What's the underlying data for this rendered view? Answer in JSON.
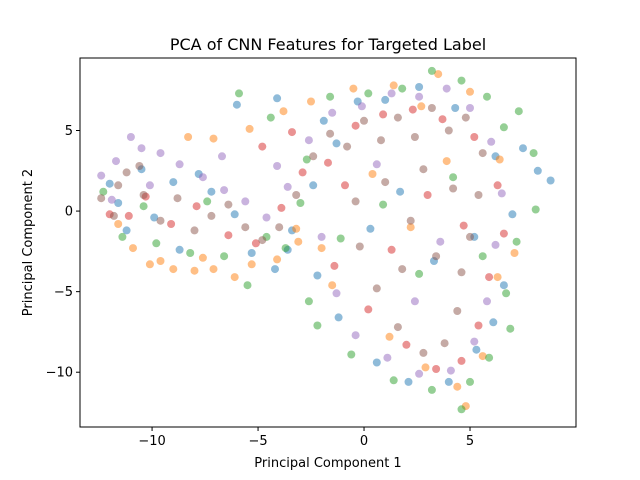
{
  "chart_data": {
    "type": "scatter",
    "title": "PCA of CNN Features for Targeted Label",
    "xlabel": "Principal Component 1",
    "ylabel": "Principal Component 2",
    "xlim": [
      -13.4,
      10.0
    ],
    "ylim": [
      -13.4,
      9.5
    ],
    "x_ticks": [
      -10,
      -5,
      0,
      5
    ],
    "y_ticks": [
      -10,
      -5,
      0,
      5
    ],
    "x_tick_labels": [
      "−10",
      "−5",
      "0",
      "5"
    ],
    "y_tick_labels": [
      "−10",
      "−5",
      "0",
      "5"
    ],
    "grid": false,
    "legend": "none",
    "marker_alpha": 0.5,
    "series_colors": [
      "#1f77b4",
      "#ff7f0e",
      "#2ca02c",
      "#d62728",
      "#9467bd",
      "#8c564b"
    ],
    "series": [
      {
        "color": "#1f77b4",
        "points": [
          [
            -12.0,
            1.7
          ],
          [
            -11.2,
            -1.2
          ],
          [
            -10.5,
            2.6
          ],
          [
            -9.0,
            1.8
          ],
          [
            -7.8,
            2.3
          ],
          [
            -6.1,
            -0.2
          ],
          [
            -5.3,
            -2.6
          ],
          [
            -4.2,
            -3.6
          ],
          [
            -3.4,
            -1.2
          ],
          [
            -2.4,
            1.6
          ],
          [
            -1.3,
            4.2
          ],
          [
            -0.3,
            6.8
          ],
          [
            1.0,
            6.9
          ],
          [
            2.6,
            7.7
          ],
          [
            4.3,
            6.4
          ],
          [
            6.2,
            3.4
          ],
          [
            7.5,
            3.9
          ],
          [
            8.2,
            2.5
          ],
          [
            8.8,
            1.9
          ],
          [
            7.0,
            -0.2
          ],
          [
            6.6,
            -4.6
          ],
          [
            6.1,
            -6.9
          ],
          [
            5.3,
            -8.6
          ],
          [
            4.0,
            -10.6
          ],
          [
            2.1,
            -10.6
          ],
          [
            0.6,
            -9.4
          ],
          [
            -1.2,
            -6.6
          ],
          [
            -2.2,
            -4.0
          ],
          [
            -3.6,
            -2.4
          ],
          [
            -6.0,
            6.6
          ],
          [
            -4.1,
            7.0
          ],
          [
            -1.9,
            5.6
          ],
          [
            0.3,
            -1.1
          ],
          [
            1.7,
            1.2
          ],
          [
            3.3,
            -3.1
          ],
          [
            5.2,
            -1.6
          ],
          [
            -11.6,
            0.5
          ],
          [
            -8.7,
            -2.4
          ],
          [
            -7.2,
            1.2
          ],
          [
            -9.9,
            -0.4
          ]
        ]
      },
      {
        "color": "#ff7f0e",
        "points": [
          [
            -11.6,
            -0.8
          ],
          [
            -10.9,
            -2.3
          ],
          [
            -10.1,
            -3.3
          ],
          [
            -9.0,
            -3.6
          ],
          [
            -8.0,
            -3.7
          ],
          [
            -7.1,
            -3.6
          ],
          [
            -6.1,
            -4.1
          ],
          [
            -5.3,
            -3.3
          ],
          [
            -4.1,
            -3.0
          ],
          [
            -3.2,
            -1.1
          ],
          [
            -2.0,
            -2.3
          ],
          [
            -0.5,
            7.6
          ],
          [
            1.4,
            7.8
          ],
          [
            2.7,
            6.5
          ],
          [
            3.5,
            8.5
          ],
          [
            5.0,
            7.4
          ],
          [
            6.4,
            3.2
          ],
          [
            7.1,
            -2.6
          ],
          [
            6.3,
            -4.1
          ],
          [
            5.6,
            -9.0
          ],
          [
            4.4,
            -10.9
          ],
          [
            4.8,
            -12.1
          ],
          [
            2.9,
            -9.7
          ],
          [
            1.2,
            -7.8
          ],
          [
            -1.5,
            -4.6
          ],
          [
            -3.1,
            -1.9
          ],
          [
            -8.3,
            4.6
          ],
          [
            -7.1,
            4.5
          ],
          [
            -5.4,
            5.1
          ],
          [
            -3.8,
            6.2
          ],
          [
            -2.5,
            6.8
          ],
          [
            0.4,
            2.3
          ],
          [
            2.2,
            -1.0
          ],
          [
            3.9,
            3.1
          ],
          [
            -9.6,
            -3.1
          ],
          [
            -7.6,
            -2.9
          ]
        ]
      },
      {
        "color": "#2ca02c",
        "points": [
          [
            -12.3,
            1.2
          ],
          [
            -11.4,
            -1.6
          ],
          [
            -9.8,
            -2.0
          ],
          [
            -8.2,
            -2.6
          ],
          [
            -6.6,
            -2.8
          ],
          [
            -5.5,
            -4.6
          ],
          [
            -4.6,
            -1.6
          ],
          [
            -3.7,
            -2.3
          ],
          [
            -2.7,
            3.2
          ],
          [
            -1.6,
            7.1
          ],
          [
            0.2,
            7.3
          ],
          [
            1.8,
            7.6
          ],
          [
            3.2,
            8.7
          ],
          [
            4.6,
            8.1
          ],
          [
            5.8,
            7.1
          ],
          [
            6.6,
            5.2
          ],
          [
            7.3,
            6.2
          ],
          [
            8.0,
            3.6
          ],
          [
            8.1,
            0.1
          ],
          [
            7.2,
            -1.9
          ],
          [
            6.7,
            -5.1
          ],
          [
            6.9,
            -7.3
          ],
          [
            5.9,
            -9.1
          ],
          [
            5.0,
            -10.6
          ],
          [
            4.6,
            -12.3
          ],
          [
            3.2,
            -11.1
          ],
          [
            1.4,
            -10.5
          ],
          [
            -0.6,
            -8.9
          ],
          [
            -2.2,
            -7.1
          ],
          [
            -2.6,
            -5.6
          ],
          [
            -3.0,
            0.5
          ],
          [
            -5.9,
            7.3
          ],
          [
            -4.4,
            5.8
          ],
          [
            -1.1,
            -1.7
          ],
          [
            0.9,
            0.4
          ],
          [
            2.6,
            -3.9
          ],
          [
            4.2,
            2.1
          ],
          [
            5.6,
            -2.8
          ],
          [
            -10.4,
            0.3
          ],
          [
            -7.4,
            0.6
          ]
        ]
      },
      {
        "color": "#d62728",
        "points": [
          [
            -11.1,
            -0.3
          ],
          [
            -10.3,
            0.9
          ],
          [
            -9.1,
            -0.8
          ],
          [
            -7.9,
            0.3
          ],
          [
            -6.4,
            -1.5
          ],
          [
            -5.1,
            -2.0
          ],
          [
            -3.9,
            0.2
          ],
          [
            -2.9,
            2.4
          ],
          [
            -1.7,
            3.0
          ],
          [
            -0.4,
            5.3
          ],
          [
            0.9,
            6.0
          ],
          [
            2.3,
            6.3
          ],
          [
            3.7,
            5.7
          ],
          [
            5.2,
            4.6
          ],
          [
            6.3,
            1.6
          ],
          [
            6.6,
            -1.4
          ],
          [
            5.9,
            -4.1
          ],
          [
            5.4,
            -7.1
          ],
          [
            4.6,
            -9.3
          ],
          [
            3.4,
            -9.8
          ],
          [
            2.0,
            -8.3
          ],
          [
            0.2,
            -6.1
          ],
          [
            -1.4,
            -3.4
          ],
          [
            -0.9,
            1.6
          ],
          [
            1.3,
            -2.4
          ],
          [
            3.0,
            1.0
          ],
          [
            4.7,
            -0.9
          ],
          [
            -4.8,
            4.0
          ],
          [
            -3.4,
            4.9
          ],
          [
            -12.0,
            -0.2
          ]
        ]
      },
      {
        "color": "#9467bd",
        "points": [
          [
            -12.4,
            2.2
          ],
          [
            -11.7,
            3.1
          ],
          [
            -11.0,
            4.6
          ],
          [
            -10.5,
            3.9
          ],
          [
            -9.6,
            3.6
          ],
          [
            -8.7,
            2.9
          ],
          [
            -7.6,
            2.1
          ],
          [
            -6.6,
            1.3
          ],
          [
            -5.6,
            0.6
          ],
          [
            -4.6,
            -0.4
          ],
          [
            -3.6,
            1.5
          ],
          [
            -2.6,
            4.4
          ],
          [
            -1.5,
            6.1
          ],
          [
            -0.1,
            6.5
          ],
          [
            1.3,
            7.3
          ],
          [
            2.6,
            7.1
          ],
          [
            3.9,
            7.6
          ],
          [
            5.0,
            6.4
          ],
          [
            6.0,
            4.3
          ],
          [
            6.5,
            1.1
          ],
          [
            6.2,
            -2.1
          ],
          [
            5.8,
            -5.6
          ],
          [
            5.2,
            -8.1
          ],
          [
            4.1,
            -9.9
          ],
          [
            2.6,
            -10.1
          ],
          [
            1.1,
            -9.1
          ],
          [
            -0.4,
            -7.7
          ],
          [
            -1.3,
            -5.1
          ],
          [
            -2.0,
            -1.6
          ],
          [
            -11.9,
            0.7
          ],
          [
            -10.1,
            1.6
          ],
          [
            0.6,
            2.9
          ],
          [
            2.4,
            -5.6
          ],
          [
            3.6,
            -1.9
          ],
          [
            -6.7,
            3.4
          ],
          [
            -4.1,
            2.8
          ]
        ]
      },
      {
        "color": "#8c564b",
        "points": [
          [
            -12.4,
            0.8
          ],
          [
            -11.8,
            -0.3
          ],
          [
            -11.2,
            2.4
          ],
          [
            -10.4,
            1.0
          ],
          [
            -9.6,
            -0.6
          ],
          [
            -8.8,
            0.8
          ],
          [
            -8.0,
            -1.2
          ],
          [
            -7.2,
            -0.3
          ],
          [
            -6.4,
            0.4
          ],
          [
            -5.6,
            -1.0
          ],
          [
            -4.8,
            -1.8
          ],
          [
            -4.0,
            -1.0
          ],
          [
            -3.2,
            1.0
          ],
          [
            -2.4,
            3.4
          ],
          [
            -1.6,
            4.8
          ],
          [
            -0.8,
            4.0
          ],
          [
            0.0,
            5.6
          ],
          [
            0.8,
            4.4
          ],
          [
            1.6,
            5.8
          ],
          [
            2.4,
            4.6
          ],
          [
            3.2,
            6.4
          ],
          [
            4.0,
            5.0
          ],
          [
            4.8,
            5.8
          ],
          [
            5.6,
            3.6
          ],
          [
            5.4,
            1.0
          ],
          [
            5.0,
            -1.6
          ],
          [
            4.6,
            -3.8
          ],
          [
            4.4,
            -6.2
          ],
          [
            3.8,
            -8.2
          ],
          [
            2.8,
            -8.8
          ],
          [
            1.6,
            -7.2
          ],
          [
            0.6,
            -4.8
          ],
          [
            -0.2,
            -2.2
          ],
          [
            -0.4,
            0.6
          ],
          [
            1.0,
            1.8
          ],
          [
            2.2,
            -0.6
          ],
          [
            3.4,
            -2.8
          ],
          [
            2.8,
            2.6
          ],
          [
            4.2,
            1.4
          ],
          [
            1.8,
            -3.6
          ],
          [
            -10.6,
            2.8
          ],
          [
            -11.6,
            1.6
          ]
        ]
      }
    ]
  }
}
